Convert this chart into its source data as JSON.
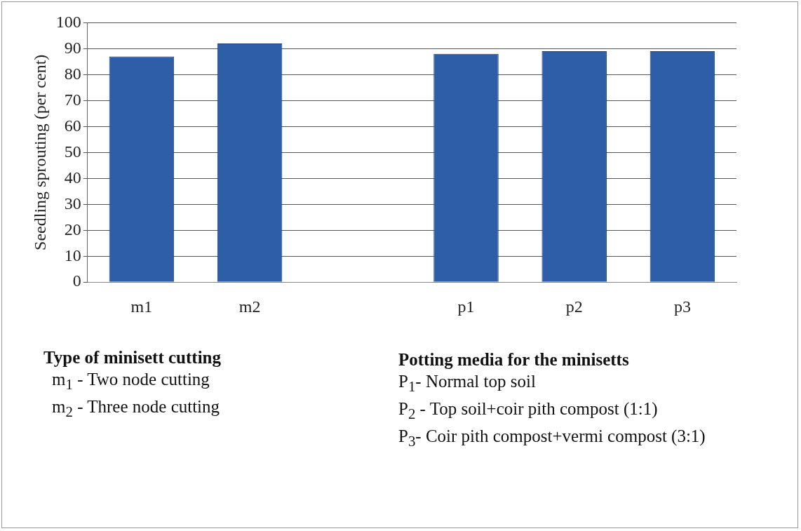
{
  "chart_data": {
    "type": "bar",
    "ylabel": "Seedling sprouting (per cent)",
    "categories": [
      "m1",
      "m2",
      null,
      "p1",
      "p2",
      "p3"
    ],
    "values": [
      87,
      92,
      null,
      88,
      89,
      89
    ],
    "color": "#2e5ea8",
    "ylim": [
      0,
      100
    ],
    "yticks": [
      0,
      10,
      20,
      30,
      40,
      50,
      60,
      70,
      80,
      90,
      100
    ],
    "grid": "y",
    "legend": false,
    "annotations": [
      "Type of minisett cutting",
      "m$_{1}$ - Two node cutting",
      "m$_{2}$ - Three node cutting",
      "Potting media for the minisetts",
      "P$_{1}$-  Normal top soil",
      "P$_{2}$ - Top soil+coir pith compost (1:1)",
      "P$_{3}$- Coir pith compost+vermi compost (3:1)"
    ]
  }
}
